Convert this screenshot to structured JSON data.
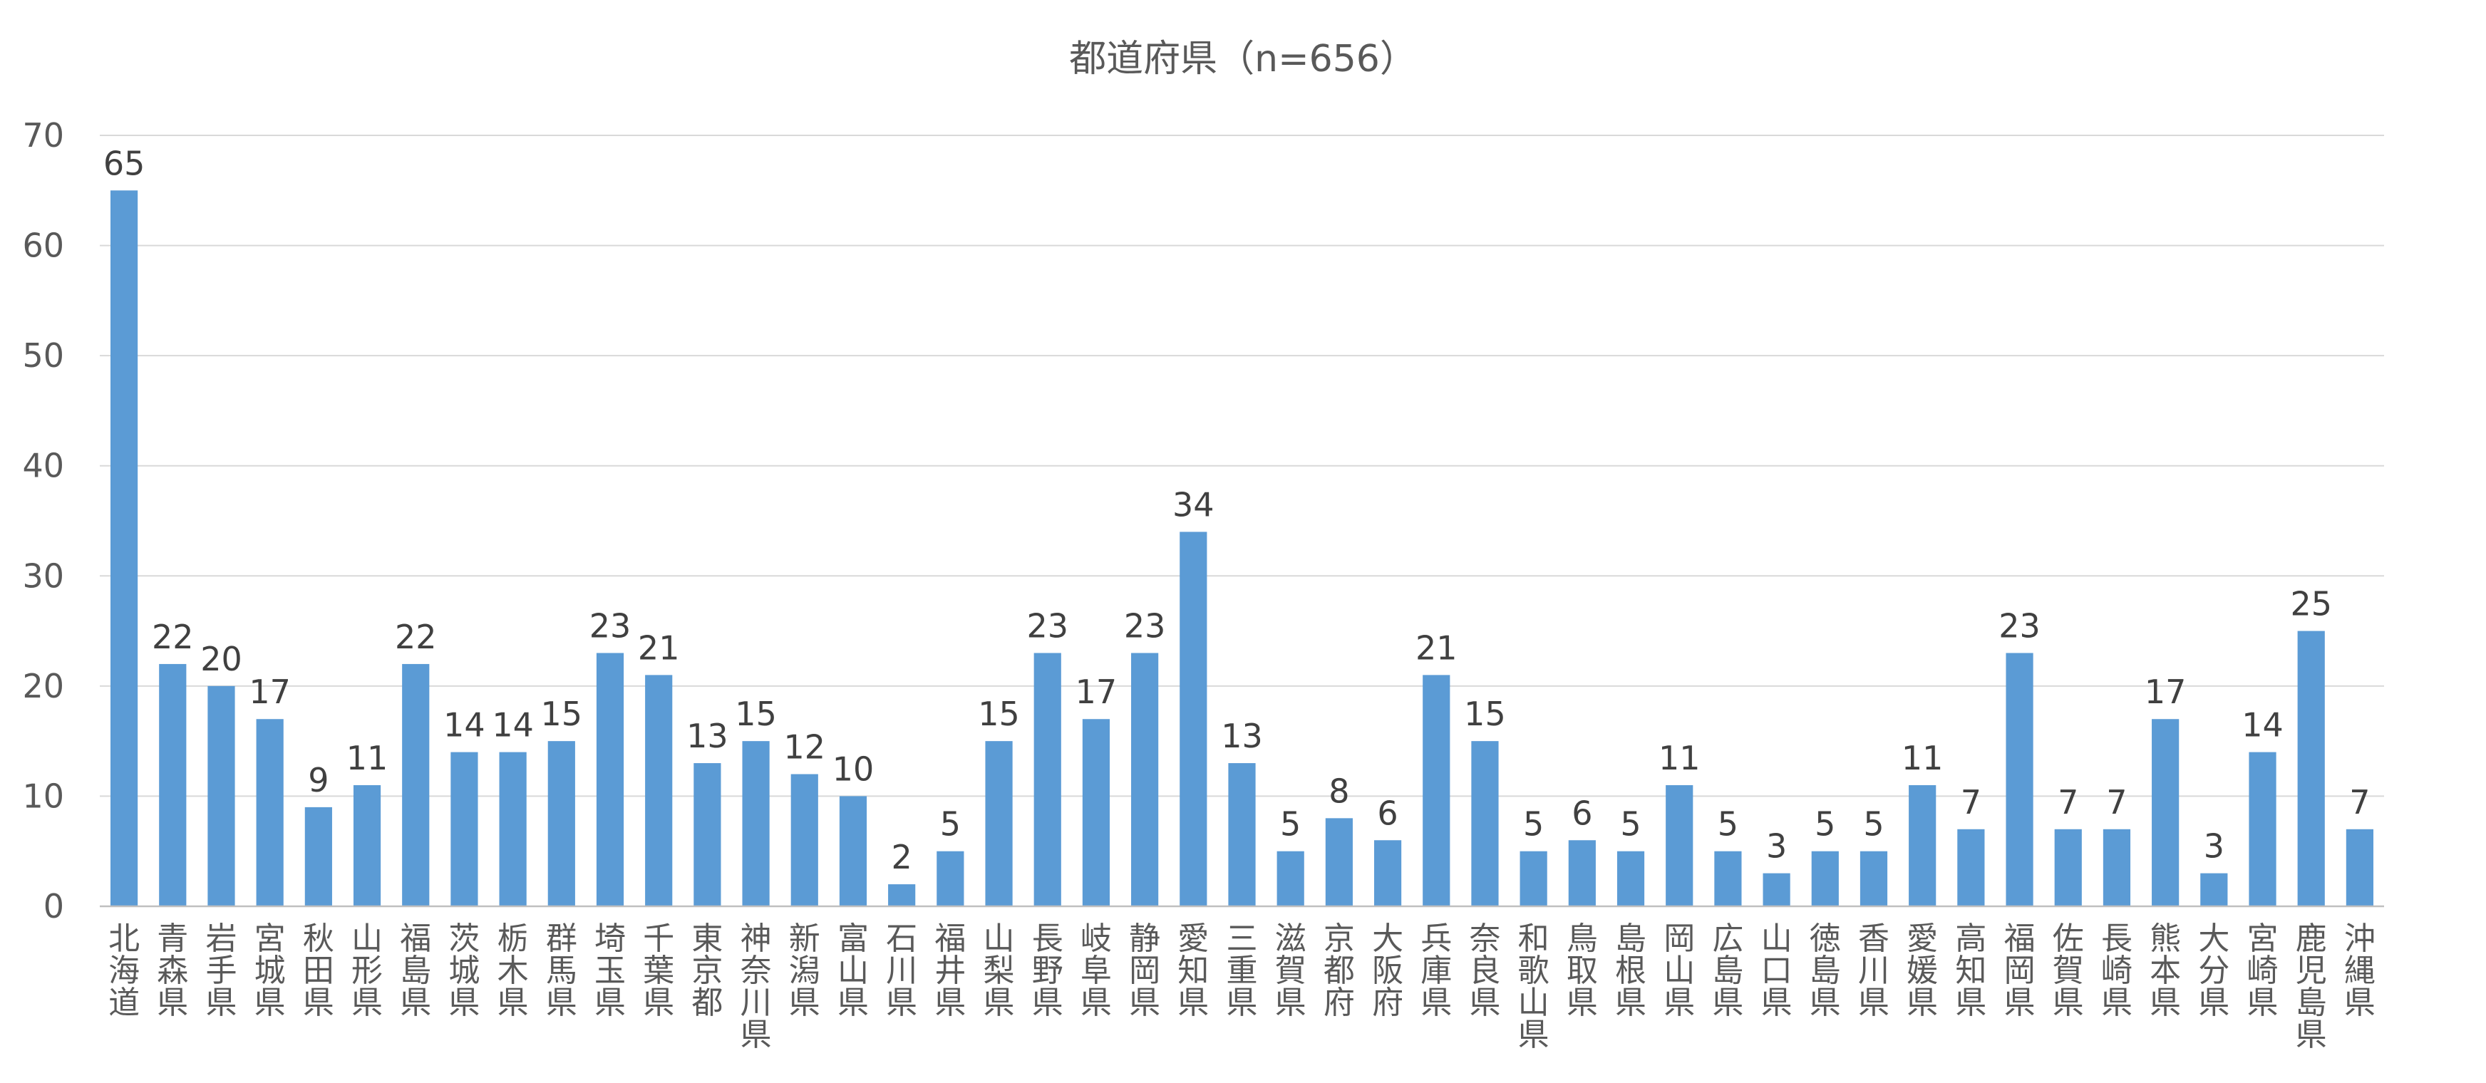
{
  "chart_data": {
    "type": "bar",
    "title": "都道府県（n=656）",
    "xlabel": "",
    "ylabel": "",
    "ylim": [
      0,
      70
    ],
    "yticks": [
      0,
      10,
      20,
      30,
      40,
      50,
      60,
      70
    ],
    "grid": true,
    "legend": "none",
    "bar_color": "#5b9bd5",
    "categories": [
      "北海道",
      "青森県",
      "岩手県",
      "宮城県",
      "秋田県",
      "山形県",
      "福島県",
      "茨城県",
      "栃木県",
      "群馬県",
      "埼玉県",
      "千葉県",
      "東京都",
      "神奈川県",
      "新潟県",
      "富山県",
      "石川県",
      "福井県",
      "山梨県",
      "長野県",
      "岐阜県",
      "静岡県",
      "愛知県",
      "三重県",
      "滋賀県",
      "京都府",
      "大阪府",
      "兵庫県",
      "奈良県",
      "和歌山県",
      "鳥取県",
      "島根県",
      "岡山県",
      "広島県",
      "山口県",
      "徳島県",
      "香川県",
      "愛媛県",
      "高知県",
      "福岡県",
      "佐賀県",
      "長崎県",
      "熊本県",
      "大分県",
      "宮崎県",
      "鹿児島県",
      "沖縄県"
    ],
    "values": [
      65,
      22,
      20,
      17,
      9,
      11,
      22,
      14,
      14,
      15,
      23,
      21,
      13,
      15,
      12,
      10,
      2,
      5,
      15,
      23,
      17,
      23,
      34,
      13,
      5,
      8,
      6,
      21,
      15,
      5,
      6,
      5,
      11,
      5,
      3,
      5,
      5,
      11,
      7,
      23,
      7,
      7,
      17,
      3,
      14,
      25,
      7
    ]
  }
}
